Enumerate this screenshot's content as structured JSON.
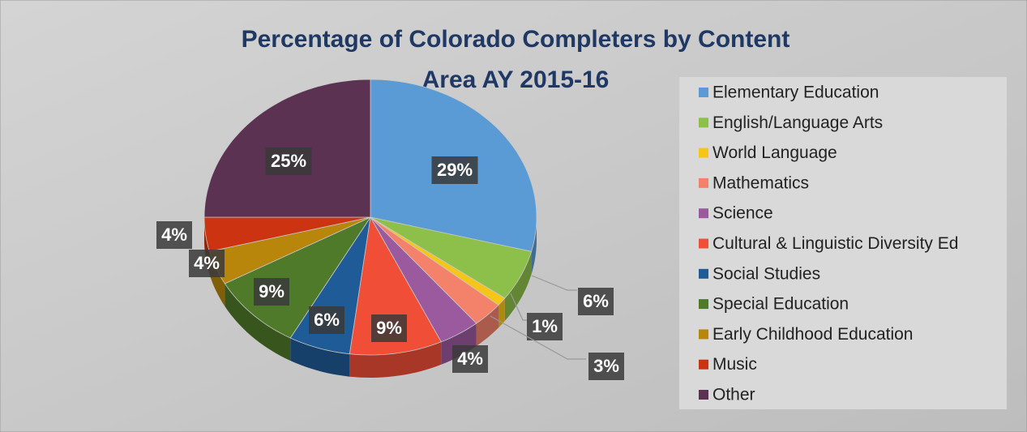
{
  "chart_data": {
    "type": "pie",
    "title": "Percentage of Colorado Completers by Content Area AY 2015-16",
    "categories": [
      "Elementary Education",
      "English/Language Arts",
      "World Language",
      "Mathematics",
      "Science",
      "Cultural & Linguistic Diversity Ed",
      "Social Studies",
      "Special Education",
      "Early Childhood Education",
      "Music",
      "Other"
    ],
    "values": [
      29,
      6,
      1,
      3,
      4,
      9,
      6,
      9,
      4,
      4,
      25
    ],
    "value_labels": [
      "29%",
      "6%",
      "1%",
      "3%",
      "4%",
      "9%",
      "6%",
      "9%",
      "4%",
      "4%",
      "25%"
    ],
    "colors": [
      "#5b9bd5",
      "#8cc04a",
      "#f5c518",
      "#f4826b",
      "#9b5a9e",
      "#f04e37",
      "#1f5b96",
      "#4e7a2a",
      "#b8860b",
      "#cc3311",
      "#5b3252"
    ],
    "legend": "right"
  }
}
